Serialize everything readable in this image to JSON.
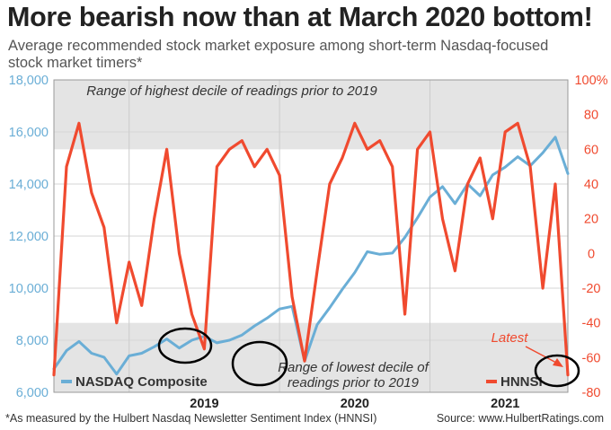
{
  "header": {
    "title": "More bearish now than at March 2020 bottom!",
    "subtitle": "Average recommended stock market exposure among short-term Nasdaq-focused stock market timers*"
  },
  "footer": {
    "footnote": "*As measured by the Hulbert Nasdaq Newsletter Sentiment Index (HNNSI)",
    "source": "Source: www.HulbertRatings.com"
  },
  "chart_data": {
    "type": "line",
    "colors": {
      "nasdaq": "#6aaed6",
      "hnnsi": "#f04a2f",
      "band": "#e4e4e4",
      "circle": "#000000"
    },
    "x_range": [
      "2018-07",
      "2021-12"
    ],
    "x_ticks": [
      {
        "label": "2019",
        "center": "2019-07"
      },
      {
        "label": "2020",
        "center": "2020-07"
      },
      {
        "label": "2021",
        "center": "2021-07"
      }
    ],
    "x_boundaries": [
      "2019-01",
      "2020-01",
      "2021-01"
    ],
    "left_axis": {
      "min": 6000,
      "max": 18000,
      "ticks": [
        "6,000",
        "8,000",
        "10,000",
        "12,000",
        "14,000",
        "16,000",
        "18,000"
      ],
      "values": [
        6000,
        8000,
        10000,
        12000,
        14000,
        16000,
        18000
      ]
    },
    "right_axis": {
      "min": -80,
      "max": 100,
      "ticks": [
        "-80",
        "-60",
        "-40",
        "-20",
        "0",
        "20",
        "40",
        "60",
        "80",
        "100%"
      ],
      "values": [
        -80,
        -60,
        -40,
        -20,
        0,
        20,
        40,
        60,
        80,
        100
      ]
    },
    "bands": [
      {
        "label": "Range of highest decile of readings prior to 2019",
        "from": 60,
        "to": 100,
        "axis": "right"
      },
      {
        "label": "Range of lowest decile of readings prior to 2019",
        "from": -80,
        "to": -40,
        "axis": "right"
      }
    ],
    "series": [
      {
        "name": "NASDAQ Composite",
        "axis": "left",
        "x": [
          "2018-07",
          "2018-08",
          "2018-09",
          "2018-10",
          "2018-11",
          "2018-12",
          "2019-01",
          "2019-02",
          "2019-03",
          "2019-04",
          "2019-05",
          "2019-06",
          "2019-07",
          "2019-08",
          "2019-09",
          "2019-10",
          "2019-11",
          "2019-12",
          "2020-01",
          "2020-02",
          "2020-03",
          "2020-04",
          "2020-05",
          "2020-06",
          "2020-07",
          "2020-08",
          "2020-09",
          "2020-10",
          "2020-11",
          "2020-12",
          "2021-01",
          "2021-02",
          "2021-03",
          "2021-04",
          "2021-05",
          "2021-06",
          "2021-07",
          "2021-08",
          "2021-09",
          "2021-10",
          "2021-11",
          "2021-12"
        ],
        "values": [
          6900,
          7600,
          7950,
          7500,
          7350,
          6700,
          7400,
          7500,
          7750,
          8050,
          7700,
          8000,
          8150,
          7900,
          8000,
          8200,
          8550,
          8850,
          9200,
          9300,
          7200,
          8600,
          9250,
          9950,
          10600,
          11400,
          11300,
          11350,
          11950,
          12700,
          13500,
          13900,
          13250,
          14000,
          13550,
          14350,
          14650,
          15050,
          14700,
          15200,
          15800,
          14400
        ]
      },
      {
        "name": "HNNSI",
        "axis": "right",
        "x": [
          "2018-07",
          "2018-08",
          "2018-09",
          "2018-10",
          "2018-11",
          "2018-12",
          "2019-01",
          "2019-02",
          "2019-03",
          "2019-04",
          "2019-05",
          "2019-06",
          "2019-07",
          "2019-08",
          "2019-09",
          "2019-10",
          "2019-11",
          "2019-12",
          "2020-01",
          "2020-02",
          "2020-03",
          "2020-04",
          "2020-05",
          "2020-06",
          "2020-07",
          "2020-08",
          "2020-09",
          "2020-10",
          "2020-11",
          "2020-12",
          "2021-01",
          "2021-02",
          "2021-03",
          "2021-04",
          "2021-05",
          "2021-06",
          "2021-07",
          "2021-08",
          "2021-09",
          "2021-10",
          "2021-11",
          "2021-12"
        ],
        "values": [
          -70,
          50,
          75,
          35,
          15,
          -40,
          -5,
          -30,
          20,
          60,
          0,
          -35,
          -55,
          50,
          60,
          65,
          50,
          60,
          45,
          -25,
          -62,
          -10,
          40,
          55,
          75,
          60,
          65,
          50,
          -35,
          60,
          70,
          20,
          -10,
          40,
          55,
          20,
          70,
          75,
          50,
          -20,
          40,
          -70
        ]
      }
    ],
    "annotations": [
      {
        "text": "Latest",
        "x": "2021-10",
        "y": -42
      }
    ],
    "markers": [
      {
        "shape": "circle",
        "x": "2018-12",
        "y": 7600
      },
      {
        "shape": "circle",
        "x": "2020-03",
        "y": 7000
      },
      {
        "shape": "circle",
        "x": "2021-11",
        "y": 6800
      }
    ]
  }
}
